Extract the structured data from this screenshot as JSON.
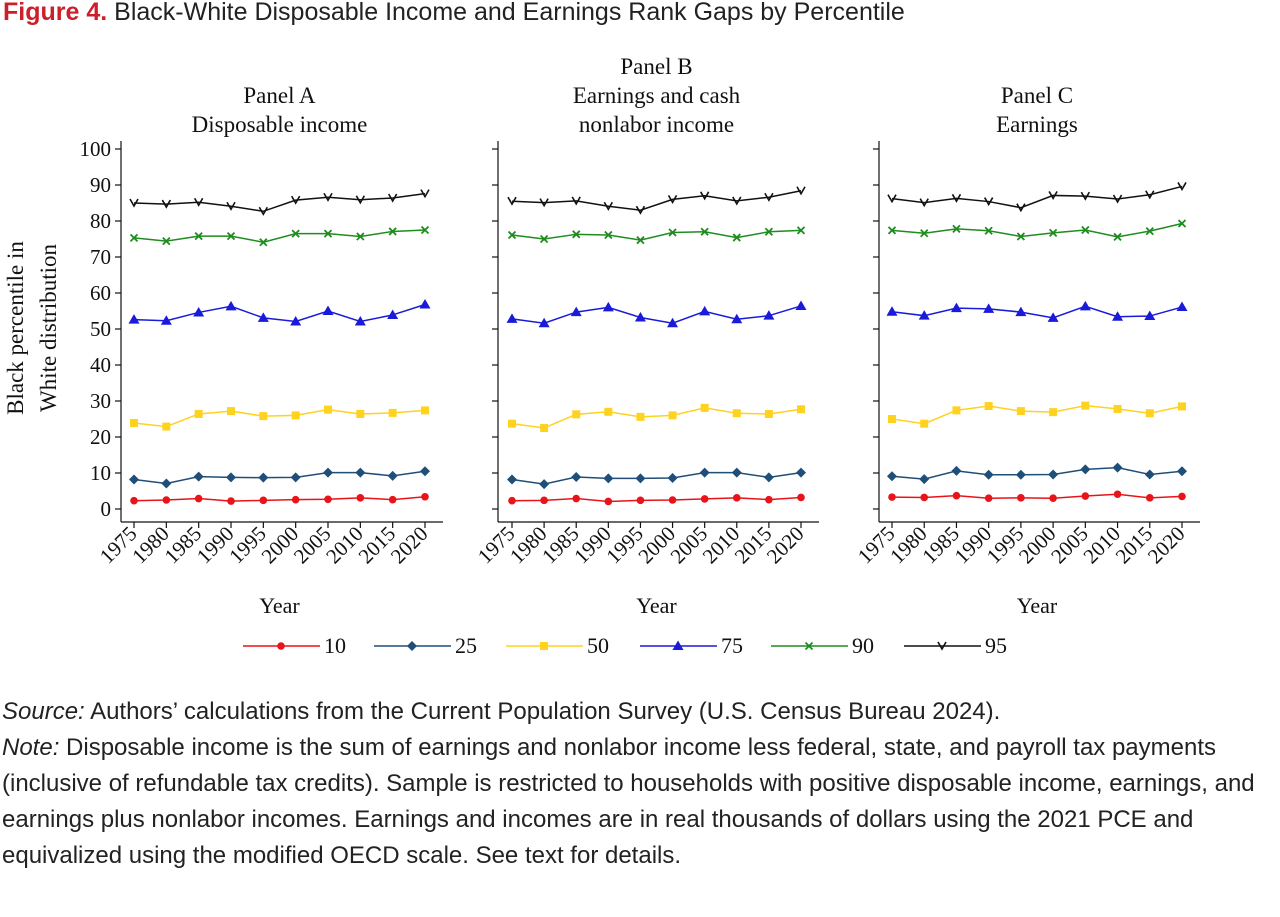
{
  "figure": {
    "label": "Figure 4.",
    "title": "Black-White Disposable Income and Earnings Rank Gaps by Percentile"
  },
  "notes": {
    "source_label": "Source:",
    "source_text": "Authors’ calculations from the Current Population Survey (U.S. Census Bureau 2024).",
    "note_label": "Note:",
    "note_text": "Disposable income is the sum of earnings and nonlabor income less federal, state, and payroll tax payments (inclusive of refundable tax credits). Sample is restricted to households with positive disposable income, earnings, and earnings plus nonlabor incomes. Earnings and incomes are in real thousands of dollars using the 2021 PCE and equivalized using the modified OECD scale. See text for details."
  },
  "chart_data": {
    "type": "line",
    "ylabel": "Black percentile in White distribution",
    "xlabel": "Year",
    "ylim": [
      0,
      100
    ],
    "yticks": [
      0,
      10,
      20,
      30,
      40,
      50,
      60,
      70,
      80,
      90,
      100
    ],
    "x": [
      1975,
      1980,
      1985,
      1990,
      1995,
      2000,
      2005,
      2010,
      2015,
      2020
    ],
    "legend": {
      "position": "bottom",
      "entries": [
        {
          "label": "10",
          "color": "#e8141a",
          "marker": "circle"
        },
        {
          "label": "25",
          "color": "#1f4e79",
          "marker": "diamond"
        },
        {
          "label": "50",
          "color": "#ffd21f",
          "marker": "square"
        },
        {
          "label": "75",
          "color": "#1a1adb",
          "marker": "triangle"
        },
        {
          "label": "90",
          "color": "#1e8c1e",
          "marker": "x"
        },
        {
          "label": "95",
          "color": "#111111",
          "marker": "v"
        }
      ]
    },
    "panels": [
      {
        "title_lines": [
          "Panel A",
          "Disposable income"
        ],
        "series": [
          {
            "name": "10",
            "values": [
              2.3,
              2.5,
              2.9,
              2.2,
              2.4,
              2.6,
              2.7,
              3.1,
              2.6,
              3.4
            ]
          },
          {
            "name": "25",
            "values": [
              8.2,
              7.1,
              9.0,
              8.8,
              8.7,
              8.8,
              10.1,
              10.1,
              9.2,
              10.5
            ]
          },
          {
            "name": "50",
            "values": [
              23.9,
              22.9,
              26.4,
              27.2,
              25.8,
              26.0,
              27.6,
              26.4,
              26.7,
              27.4
            ]
          },
          {
            "name": "75",
            "values": [
              52.6,
              52.3,
              54.6,
              56.3,
              53.1,
              52.1,
              55.0,
              52.1,
              53.9,
              56.8
            ]
          },
          {
            "name": "90",
            "values": [
              75.3,
              74.4,
              75.8,
              75.8,
              74.1,
              76.5,
              76.5,
              75.7,
              77.1,
              77.5
            ]
          },
          {
            "name": "95",
            "values": [
              85.0,
              84.7,
              85.2,
              84.1,
              82.7,
              85.8,
              86.6,
              85.9,
              86.4,
              87.6
            ]
          }
        ]
      },
      {
        "title_lines": [
          "Panel B",
          "Earnings and cash",
          "nonlabor income"
        ],
        "series": [
          {
            "name": "10",
            "values": [
              2.3,
              2.4,
              2.9,
              2.1,
              2.4,
              2.5,
              2.8,
              3.1,
              2.6,
              3.2
            ]
          },
          {
            "name": "25",
            "values": [
              8.2,
              6.9,
              8.9,
              8.5,
              8.5,
              8.6,
              10.1,
              10.1,
              8.8,
              10.1
            ]
          },
          {
            "name": "50",
            "values": [
              23.7,
              22.5,
              26.3,
              27.0,
              25.6,
              26.0,
              28.1,
              26.6,
              26.4,
              27.7
            ]
          },
          {
            "name": "75",
            "values": [
              52.8,
              51.6,
              54.7,
              56.0,
              53.2,
              51.6,
              54.9,
              52.7,
              53.7,
              56.4
            ]
          },
          {
            "name": "90",
            "values": [
              76.1,
              75.0,
              76.3,
              76.1,
              74.7,
              76.8,
              77.0,
              75.4,
              77.0,
              77.4
            ]
          },
          {
            "name": "95",
            "values": [
              85.5,
              85.1,
              85.6,
              84.1,
              83.0,
              86.0,
              87.0,
              85.6,
              86.6,
              88.4
            ]
          }
        ]
      },
      {
        "title_lines": [
          "Panel C",
          "Earnings"
        ],
        "series": [
          {
            "name": "10",
            "values": [
              3.3,
              3.2,
              3.7,
              3.0,
              3.1,
              3.0,
              3.6,
              4.1,
              3.1,
              3.5
            ]
          },
          {
            "name": "25",
            "values": [
              9.1,
              8.3,
              10.6,
              9.5,
              9.5,
              9.6,
              11.0,
              11.5,
              9.6,
              10.5
            ]
          },
          {
            "name": "50",
            "values": [
              25.0,
              23.7,
              27.4,
              28.6,
              27.2,
              26.9,
              28.7,
              27.8,
              26.6,
              28.5
            ]
          },
          {
            "name": "75",
            "values": [
              54.8,
              53.7,
              55.8,
              55.6,
              54.7,
              53.1,
              56.3,
              53.4,
              53.6,
              56.1
            ]
          },
          {
            "name": "90",
            "values": [
              77.4,
              76.6,
              77.8,
              77.3,
              75.7,
              76.7,
              77.5,
              75.6,
              77.2,
              79.3
            ]
          },
          {
            "name": "95",
            "values": [
              86.2,
              85.1,
              86.3,
              85.4,
              83.7,
              87.1,
              86.9,
              86.1,
              87.3,
              89.6
            ]
          }
        ]
      }
    ]
  }
}
